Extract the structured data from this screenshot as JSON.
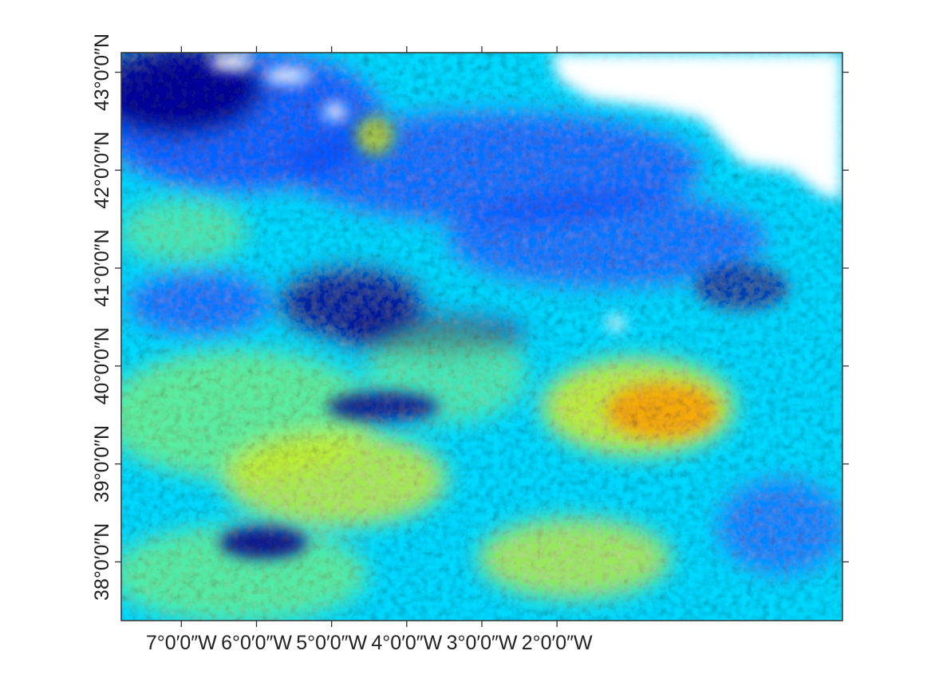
{
  "map": {
    "type": "raster",
    "colormap": "jet",
    "colors": {
      "dark_blue": "#00008f",
      "blue": "#0050ff",
      "cyan": "#00d8ff",
      "green": "#6ef28a",
      "yellow": "#e8f000",
      "orange": "#ffa000",
      "no_data": "#ffffff",
      "frame": "#333333"
    },
    "extent": {
      "lon_min": -7.8,
      "lon_max": 1.8,
      "lat_min": 37.4,
      "lat_max": 43.2
    },
    "x_ticks": [
      {
        "value": -7,
        "label": "7°0′0″W"
      },
      {
        "value": -6,
        "label": "6°0′0″W"
      },
      {
        "value": -5,
        "label": "5°0′0″W"
      },
      {
        "value": -4,
        "label": "4°0′0″W"
      },
      {
        "value": -3,
        "label": "3°0′0″W"
      },
      {
        "value": -2,
        "label": "2°0′0″W"
      }
    ],
    "y_ticks": [
      {
        "value": 38,
        "label": "38°0′0″N"
      },
      {
        "value": 39,
        "label": "39°0′0″N"
      },
      {
        "value": 40,
        "label": "40°0′0″N"
      },
      {
        "value": 41,
        "label": "41°0′0″N"
      },
      {
        "value": 42,
        "label": "42°0′0″N"
      },
      {
        "value": 43,
        "label": "43°0′0″N"
      }
    ]
  }
}
